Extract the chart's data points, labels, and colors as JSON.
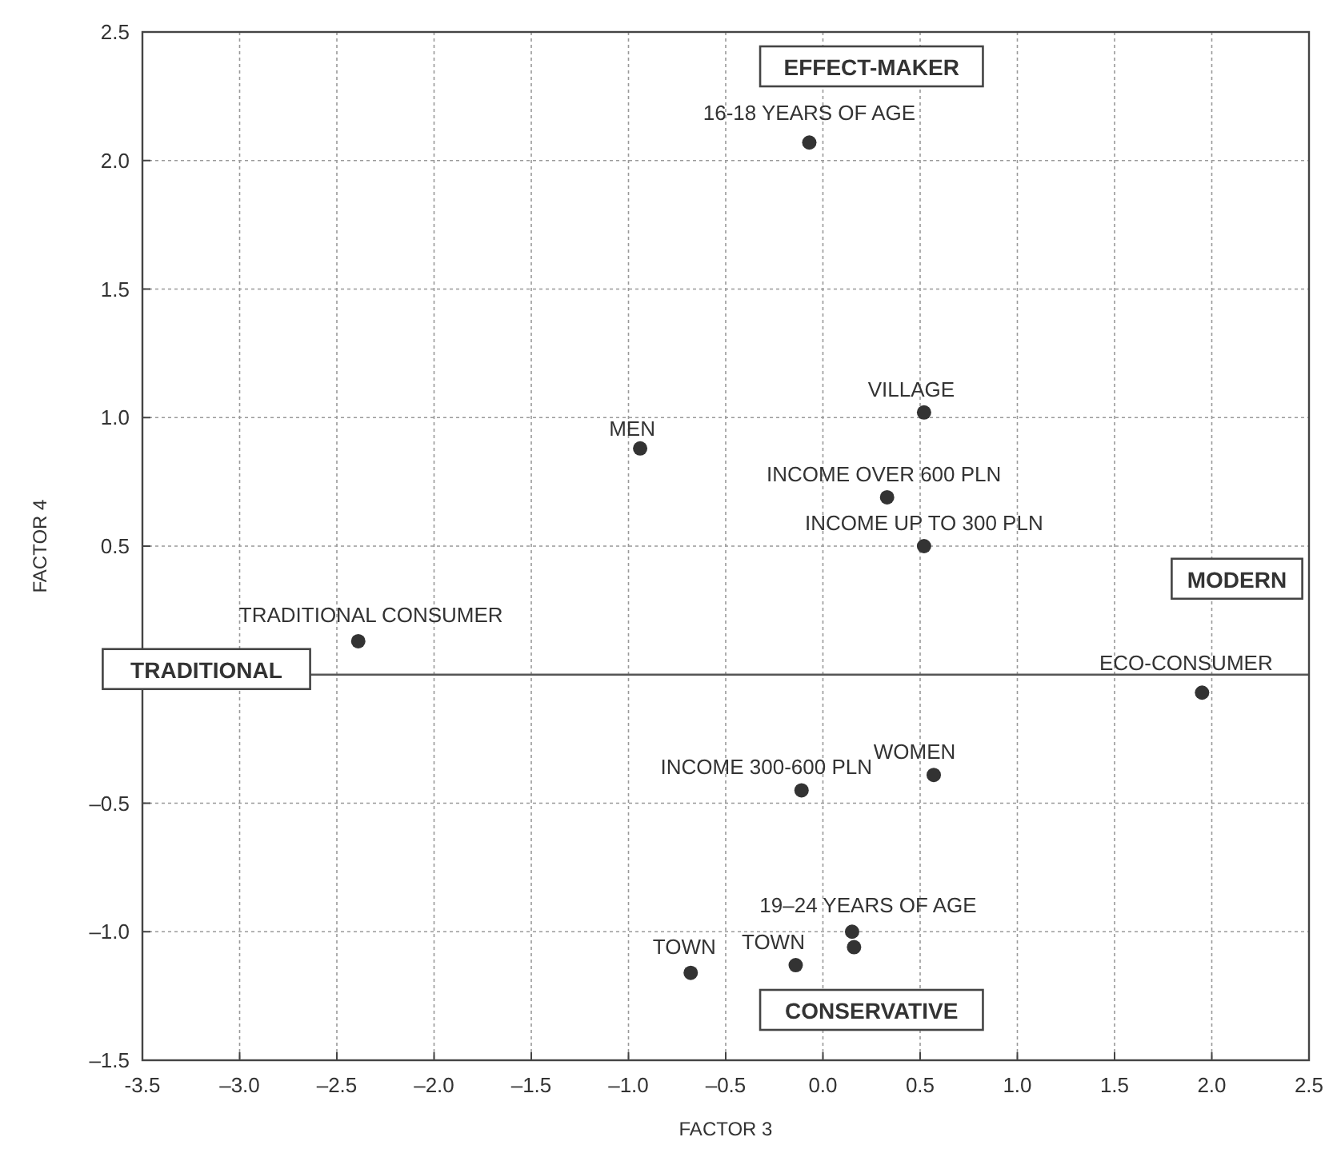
{
  "chart_data": {
    "type": "scatter",
    "xlabel": "FACTOR 3",
    "ylabel": "FACTOR 4",
    "x": [
      -0.07,
      0.52,
      -0.94,
      0.33,
      0.52,
      -2.39,
      1.95,
      0.57,
      -0.11,
      0.15,
      0.16,
      -0.14,
      -0.68
    ],
    "values": [
      2.07,
      1.02,
      0.88,
      0.69,
      0.5,
      0.13,
      -0.07,
      -0.39,
      -0.45,
      -1.0,
      -1.06,
      -1.13,
      -1.16
    ],
    "value_labels": [
      "16-18 YEARS OF AGE",
      "VILLAGE",
      "MEN",
      "INCOME OVER 600 PLN",
      "INCOME UP TO 300 PLN",
      "TRADITIONAL CONSUMER",
      "ECO-CONSUMER",
      "WOMEN",
      "INCOME 300-600 PLN",
      "19–24 YEARS OF AGE",
      null,
      "TOWN",
      "TOWN"
    ],
    "color": "#333333",
    "marker": "circle",
    "grid": true,
    "xlim": [
      -3.5,
      2.5
    ],
    "xticks": [
      {
        "value": -3.5,
        "label": "-3.5"
      },
      {
        "value": -3,
        "label": "–3.0"
      },
      {
        "value": -2.5,
        "label": "–2.5"
      },
      {
        "value": -2,
        "label": "–2.0"
      },
      {
        "value": -1.5,
        "label": "–1.5"
      },
      {
        "value": -1,
        "label": "–1.0"
      },
      {
        "value": -0.5,
        "label": "–0.5"
      },
      {
        "value": 0,
        "label": "0.0"
      },
      {
        "value": 0.5,
        "label": "0.5"
      },
      {
        "value": 1,
        "label": "1.0"
      },
      {
        "value": 1.5,
        "label": "1.5"
      },
      {
        "value": 2,
        "label": "2.0"
      },
      {
        "value": 2.5,
        "label": "2.5"
      }
    ],
    "ylim": [
      -1.5,
      2.5
    ],
    "yticks": [
      {
        "value": -1.5,
        "label": "–1.5"
      },
      {
        "value": -1,
        "label": "–1.0"
      },
      {
        "value": -0.5,
        "label": "–0.5"
      },
      {
        "value": 0,
        "label": null
      },
      {
        "value": 0.5,
        "label": "0.5"
      },
      {
        "value": 1,
        "label": "1.0"
      },
      {
        "value": 1.5,
        "label": "1.5"
      },
      {
        "value": 2,
        "label": "2.0"
      },
      {
        "value": 2.5,
        "label": "2.5"
      }
    ],
    "ref_lines": [
      {
        "axis": "y",
        "value": 0,
        "color": "#555555"
      }
    ],
    "annotations": [
      "EFFECT-MAKER",
      "MODERN",
      "TRADITIONAL",
      "CONSERVATIVE"
    ]
  }
}
